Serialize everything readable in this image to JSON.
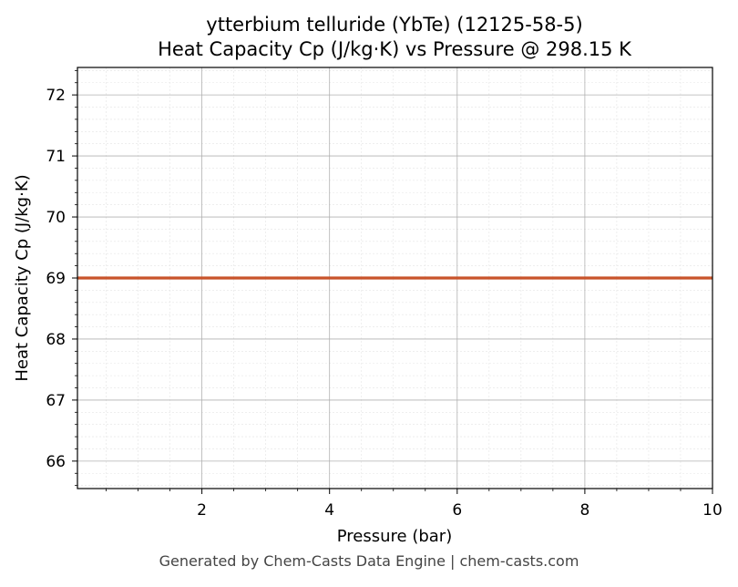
{
  "chart_data": {
    "type": "line",
    "title": "ytterbium telluride (YbTe) (12125-58-5)",
    "subtitle": "Heat Capacity Cp (J/kg·K) vs Pressure @ 298.15 K",
    "xlabel": "Pressure (bar)",
    "ylabel": "Heat Capacity Cp (J/kg·K)",
    "xlim": [
      0.05,
      10
    ],
    "ylim": [
      65.55,
      72.45
    ],
    "xticks": [
      2,
      4,
      6,
      8,
      10
    ],
    "yticks": [
      66,
      67,
      68,
      69,
      70,
      71,
      72
    ],
    "grid": true,
    "series": [
      {
        "x": [
          0.05,
          10
        ],
        "y": [
          69.0,
          69.0
        ],
        "color": "#c8532a"
      }
    ]
  },
  "footer": "Generated by Chem-Casts Data Engine | chem-casts.com"
}
